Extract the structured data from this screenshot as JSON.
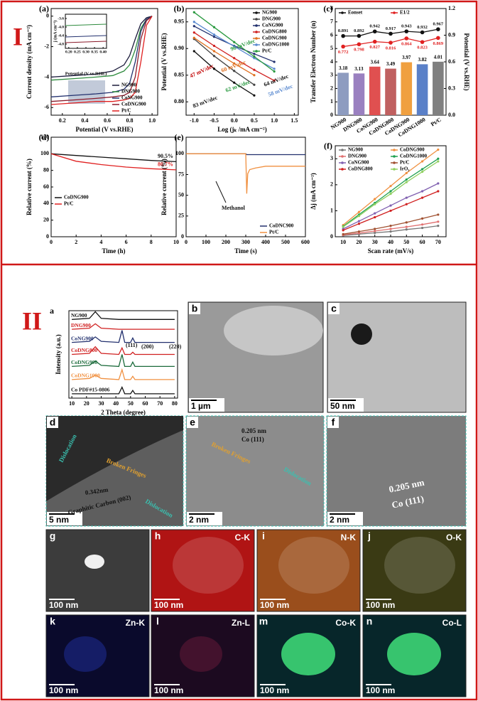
{
  "sections": [
    "I",
    "II"
  ],
  "chart_data": [
    {
      "type": "line",
      "panel": "(a)",
      "xlabel": "Potential (V vs.RHE)",
      "ylabel": "Current density (mA cm⁻²)",
      "x": [
        0.1,
        0.3,
        0.5,
        0.65,
        0.75,
        0.8,
        0.85,
        0.9,
        0.95,
        1.0
      ],
      "xlim": [
        0.1,
        1.05
      ],
      "ylim": [
        -6.5,
        0.5
      ],
      "xticks": [
        0.2,
        0.4,
        0.6,
        0.8,
        {
          "value": 1,
          "label": "1.0"
        }
      ],
      "yticks": [
        -6,
        -4,
        -2,
        0
      ],
      "legend": "lower right",
      "series": [
        {
          "name": "NG900",
          "color": "#1a1a3a",
          "values": [
            -4.0,
            -3.9,
            -3.8,
            -3.6,
            -3.2,
            -2.6,
            -1.5,
            -0.5,
            -0.1,
            0
          ]
        },
        {
          "name": "DNG900",
          "color": "#2e8b3e",
          "values": [
            -4.2,
            -4.1,
            -4.0,
            -3.9,
            -3.6,
            -3.2,
            -2.2,
            -0.8,
            -0.2,
            0
          ]
        },
        {
          "name": "CoNG900",
          "color": "#22306e",
          "values": [
            -5.3,
            -5.2,
            -5.1,
            -5.0,
            -4.8,
            -4.4,
            -3.0,
            -1.0,
            -0.2,
            0
          ]
        },
        {
          "name": "CoDNG900",
          "color": "#8a1a2a",
          "values": [
            -5.6,
            -5.5,
            -5.4,
            -5.3,
            -5.2,
            -5.0,
            -4.0,
            -1.5,
            -0.3,
            0
          ]
        },
        {
          "name": "Pt/C",
          "color": "#e02020",
          "values": [
            -5.8,
            -5.7,
            -5.6,
            -5.6,
            -5.5,
            -5.4,
            -5.0,
            -3.0,
            -0.6,
            0
          ]
        }
      ],
      "inset": {
        "xlabel": "Potential (V vs.RHE)",
        "ylabel": "j (mA cm⁻²)",
        "xlim": [
          0.18,
          0.42
        ],
        "ylim": [
          -5,
          -3.4
        ],
        "xticks": [
          {
            "value": 0.2,
            "label": "0.20"
          },
          0.25,
          {
            "value": 0.3,
            "label": "0.30"
          },
          0.35,
          {
            "value": 0.4,
            "label": "0.40"
          }
        ],
        "yticks": [
          -3.6,
          {
            "value": -4,
            "label": "-4.0"
          },
          -4.4,
          -4.8
        ]
      }
    },
    {
      "type": "line",
      "panel": "(b)",
      "xlabel": "Log (jₖ /mA cm⁻²)",
      "ylabel": "Potential (V vs.RHE)",
      "x": [
        -1,
        -0.5,
        0,
        0.5,
        1
      ],
      "xlim": [
        -1.2,
        1.6
      ],
      "ylim": [
        0.775,
        0.975
      ],
      "xticks": [
        {
          "value": -1,
          "label": "-1.0"
        },
        -0.5,
        {
          "value": 0,
          "label": "0.0"
        },
        0.5,
        {
          "value": 1,
          "label": "1.0"
        },
        1.5
      ],
      "yticks": [
        {
          "value": 0.8,
          "label": "0.80"
        },
        0.85,
        {
          "value": 0.9,
          "label": "0.90"
        },
        0.95
      ],
      "legend": "upper right",
      "markers": true,
      "annotations": [
        "47 mV/dec",
        "96 mV/dec",
        "64 mV/dec",
        "60 mV/dec",
        "58 mV/dec",
        "83 mV/dec",
        "62 mV/dec"
      ],
      "series": [
        {
          "name": "NG900",
          "color": "#111111",
          "values": [
            0.895,
            0.862,
            0.836,
            0.812,
            null
          ]
        },
        {
          "name": "DNG900",
          "color": "#444444",
          "values": [
            0.918,
            0.886,
            0.858,
            0.832,
            null
          ]
        },
        {
          "name": "CoNG900",
          "color": "#22306e",
          "values": [
            0.942,
            0.922,
            0.905,
            0.89,
            0.875
          ]
        },
        {
          "name": "CoDNG800",
          "color": "#d02020",
          "values": [
            0.93,
            0.905,
            0.882,
            0.86,
            0.84
          ]
        },
        {
          "name": "CoDNG900",
          "color": "#e07020",
          "values": [
            0.92,
            0.895,
            0.872,
            0.85,
            null
          ]
        },
        {
          "name": "CoDNG1000",
          "color": "#5a8ad0",
          "values": [
            0.95,
            0.926,
            0.904,
            0.882,
            0.862
          ]
        },
        {
          "name": "Pt/C",
          "color": "#2a9a40",
          "values": [
            0.968,
            0.94,
            0.912,
            0.885,
            0.857
          ]
        }
      ]
    },
    {
      "type": "bar",
      "panel": "(c)",
      "ylabel": "Transfer Electron Number (n)",
      "y2label": "Potential (V vs.RHE)",
      "categories": [
        "NG900",
        "DNG900",
        "CoNG900",
        "CoDNG800",
        "CoDNG900",
        "CoDNG1000",
        "Pt/C"
      ],
      "values": [
        3.18,
        3.13,
        3.64,
        3.49,
        3.97,
        3.82,
        4.01
      ],
      "colors": [
        "#8e9cc0",
        "#9a80c0",
        "#e05050",
        "#c06060",
        "#f0a040",
        "#5a80c8",
        "#808080"
      ],
      "ylim": [
        0,
        8
      ],
      "yticks": [
        0,
        1,
        2,
        3,
        4,
        5,
        6,
        7,
        8
      ],
      "y2lim": [
        0,
        1.2
      ],
      "y2ticks": [
        {
          "value": 0,
          "label": "0.0"
        },
        0.3,
        0.6,
        0.9,
        1.2
      ],
      "legend": "upper left",
      "legend_ncol": 2,
      "markers": true,
      "data_labels": true,
      "series": [
        {
          "name": "Eonset",
          "color": "#111111",
          "axis": "y2",
          "values": [
            0.891,
            0.892,
            0.942,
            0.917,
            0.943,
            0.932,
            0.967
          ]
        },
        {
          "name": "E1/2",
          "color": "#e02020",
          "axis": "y2",
          "values": [
            0.772,
            0.798,
            0.827,
            0.816,
            0.864,
            0.823,
            0.869
          ]
        }
      ]
    },
    {
      "type": "line",
      "panel": "(d)",
      "xlabel": "Time (h)",
      "ylabel": "Relative current (%)",
      "x": [
        0,
        2,
        4,
        6,
        8,
        10
      ],
      "xlim": [
        0,
        10
      ],
      "ylim": [
        0,
        120
      ],
      "xticks": [
        0,
        2,
        4,
        6,
        8,
        10
      ],
      "yticks": [
        0,
        20,
        40,
        60,
        80,
        100,
        120
      ],
      "legend": "lower left",
      "series": [
        {
          "name": "CoDNG900",
          "color": "#111111",
          "values": [
            100,
            98,
            96,
            94,
            92,
            90.5
          ],
          "value_labels": [
            null,
            null,
            null,
            null,
            null,
            "90.5%"
          ]
        },
        {
          "name": "Pt/C",
          "color": "#e02020",
          "values": [
            100,
            91,
            87,
            84,
            82,
            80.7
          ],
          "value_labels": [
            null,
            null,
            null,
            null,
            null,
            "80.7%"
          ]
        }
      ]
    },
    {
      "type": "line",
      "panel": "(e)",
      "xlabel": "Time (s)",
      "ylabel": "Relative current (%)",
      "x": [
        0,
        100,
        200,
        300,
        305,
        310,
        320,
        350,
        400,
        500,
        600
      ],
      "xlim": [
        0,
        600
      ],
      "ylim": [
        0,
        120
      ],
      "xticks": [
        0,
        100,
        200,
        300,
        400,
        500,
        600
      ],
      "yticks": [
        0,
        25,
        50,
        75,
        100
      ],
      "legend": "lower right",
      "annotations": [
        "Methanol"
      ],
      "series": [
        {
          "name": "CoDNC900",
          "color": "#22306e",
          "values": [
            100,
            100,
            100,
            100,
            99,
            99,
            99,
            99,
            99,
            99,
            99
          ]
        },
        {
          "name": "Pt/C",
          "color": "#f09040",
          "values": [
            100,
            100,
            100,
            100,
            52,
            76,
            81,
            83,
            85,
            85,
            85
          ]
        }
      ]
    },
    {
      "type": "line",
      "panel": "(f)",
      "xlabel": "Scan rate (mV/s)",
      "ylabel": "Δj (mA cm⁻²)",
      "x": [
        10,
        20,
        30,
        40,
        50,
        60,
        70
      ],
      "xlim": [
        5,
        75
      ],
      "ylim": [
        0,
        3.5
      ],
      "xticks": [
        10,
        20,
        30,
        40,
        50,
        60,
        70
      ],
      "yticks": [
        0,
        1,
        2,
        3
      ],
      "legend": "upper left",
      "legend_ncol": 2,
      "markers": true,
      "series": [
        {
          "name": "NG900",
          "color": "#777777",
          "values": [
            0.05,
            0.1,
            0.15,
            0.2,
            0.28,
            0.34,
            0.42
          ]
        },
        {
          "name": "DNG900",
          "color": "#e07070",
          "values": [
            0.07,
            0.14,
            0.22,
            0.3,
            0.38,
            0.47,
            0.58
          ]
        },
        {
          "name": "CoNG900",
          "color": "#8060b0",
          "values": [
            0.3,
            0.6,
            0.9,
            1.2,
            1.5,
            1.75,
            2.05
          ]
        },
        {
          "name": "CoDNG800",
          "color": "#d02020",
          "values": [
            0.25,
            0.5,
            0.75,
            1.0,
            1.25,
            1.5,
            1.75
          ]
        },
        {
          "name": "CoDNG900",
          "color": "#f09040",
          "values": [
            0.45,
            0.95,
            1.45,
            1.95,
            2.45,
            2.9,
            3.35
          ]
        },
        {
          "name": "CoDNG1000",
          "color": "#20a050",
          "values": [
            0.4,
            0.85,
            1.3,
            1.75,
            2.2,
            2.6,
            3.0
          ]
        },
        {
          "name": "Pt/C",
          "color": "#a05030",
          "values": [
            0.1,
            0.2,
            0.3,
            0.42,
            0.55,
            0.7,
            0.85
          ]
        },
        {
          "name": "IrO₂",
          "color": "#90d060",
          "values": [
            0.38,
            0.8,
            1.25,
            1.65,
            2.1,
            2.5,
            2.9
          ]
        }
      ]
    },
    {
      "type": "line",
      "panel": "a",
      "xlabel": "2 Theta (degree)",
      "ylabel": "Intensity (a.u.)",
      "x": [
        10,
        22,
        26,
        30,
        42,
        44.2,
        46,
        50,
        51.5,
        53,
        75,
        80
      ],
      "xlim": [
        8,
        82
      ],
      "ylim": [
        0,
        8
      ],
      "xticks": [
        10,
        20,
        30,
        40,
        50,
        60,
        70,
        80
      ],
      "legend": "inline",
      "annotations": [
        "(111)",
        "(200)",
        "(220)"
      ],
      "series": [
        {
          "name": "NG900",
          "color": "#111111",
          "values": [
            7.2,
            7.3,
            7.9,
            7.3,
            7.2,
            7.2,
            7.2,
            7.2,
            7.2,
            7.2,
            7.2,
            7.2
          ]
        },
        {
          "name": "DNG900",
          "color": "#d02020",
          "values": [
            6.3,
            6.4,
            6.8,
            6.4,
            6.3,
            6.3,
            6.3,
            6.3,
            6.3,
            6.3,
            6.3,
            6.3
          ]
        },
        {
          "name": "CoNG900",
          "color": "#22306e",
          "values": [
            5.1,
            5.2,
            5.6,
            5.2,
            5.1,
            6.2,
            5.1,
            5.1,
            5.5,
            5.1,
            5.1,
            5.1
          ]
        },
        {
          "name": "CoDNG800",
          "color": "#d02020",
          "values": [
            4.0,
            4.1,
            4.7,
            4.1,
            4.0,
            4.6,
            4.0,
            4.0,
            4.2,
            4.0,
            4.0,
            4.0
          ]
        },
        {
          "name": "CoDNG900",
          "color": "#1a6a3a",
          "values": [
            2.9,
            3.0,
            3.4,
            3.0,
            2.9,
            4.0,
            2.9,
            2.9,
            3.3,
            2.9,
            2.9,
            2.9
          ]
        },
        {
          "name": "CoDNG1000",
          "color": "#f09040",
          "values": [
            1.7,
            1.8,
            2.1,
            1.8,
            1.7,
            2.6,
            1.7,
            1.7,
            2.0,
            1.7,
            1.7,
            1.7
          ]
        },
        {
          "name": "Co PDF#15-0806",
          "color": "#111111",
          "values": [
            0.4,
            0.4,
            0.4,
            0.4,
            0.4,
            1.0,
            0.4,
            0.4,
            0.7,
            0.4,
            0.4,
            0.4
          ]
        }
      ]
    }
  ],
  "micrographs": [
    {
      "panel": "b",
      "scale_bar": "1 µm"
    },
    {
      "panel": "c",
      "scale_bar": "50 nm"
    },
    {
      "panel": "d",
      "scale_bar": "5 nm",
      "labels": [
        "Dislocation",
        "Broken Fringes",
        "Dislocation",
        "0.342nm",
        "Graphitic Carbon (002)"
      ]
    },
    {
      "panel": "e",
      "scale_bar": "2 nm",
      "labels": [
        "0.205 nm",
        "Co (111)",
        "Broken Fringes",
        "Dislocation"
      ]
    },
    {
      "panel": "f",
      "scale_bar": "2 nm",
      "labels": [
        "0.205 nm",
        "Co (111)"
      ]
    },
    {
      "panel": "g",
      "scale_bar": "100 nm"
    },
    {
      "panel": "h",
      "scale_bar": "100 nm",
      "labels": [
        "C-K"
      ]
    },
    {
      "panel": "i",
      "scale_bar": "100 nm",
      "labels": [
        "N-K"
      ]
    },
    {
      "panel": "j",
      "scale_bar": "100 nm",
      "labels": [
        "O-K"
      ]
    },
    {
      "panel": "k",
      "scale_bar": "100 nm",
      "labels": [
        "Zn-K"
      ]
    },
    {
      "panel": "l",
      "scale_bar": "100 nm",
      "labels": [
        "Zn-L"
      ]
    },
    {
      "panel": "m",
      "scale_bar": "100 nm",
      "labels": [
        "Co-K"
      ]
    },
    {
      "panel": "n",
      "scale_bar": "100 nm",
      "labels": [
        "Co-L"
      ]
    }
  ]
}
